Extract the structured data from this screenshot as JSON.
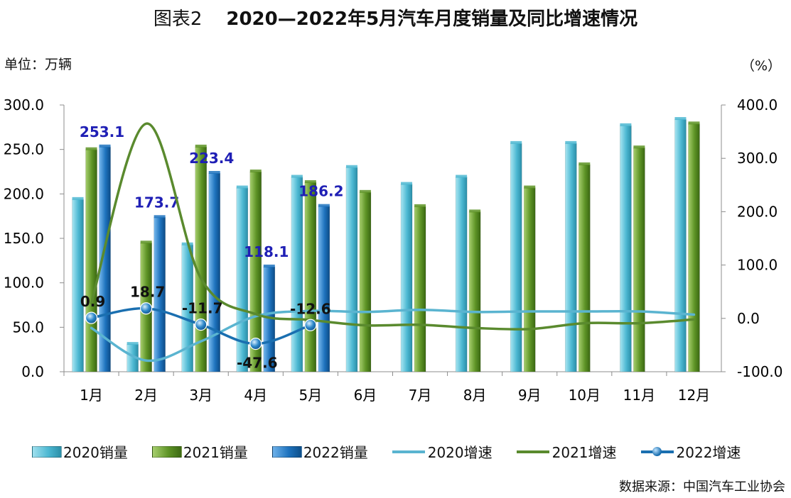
{
  "title": {
    "prefix": "图表2",
    "main": "2020—2022年5月汽车月度销量及同比增速情况"
  },
  "unit_left": "单位：万辆",
  "unit_right": "（%）",
  "source": "数据来源：中国汽车工业协会",
  "legend": [
    {
      "label": "2020销量",
      "kind": "bar",
      "color": "#4DB8D2"
    },
    {
      "label": "2021销量",
      "kind": "bar",
      "color": "#5E9426"
    },
    {
      "label": "2022销量",
      "kind": "bar",
      "color": "#1E73BE"
    },
    {
      "label": "2020增速",
      "kind": "line",
      "color": "#5AB4D0"
    },
    {
      "label": "2021增速",
      "kind": "line",
      "color": "#5A8A2E"
    },
    {
      "label": "2022增速",
      "kind": "line-marker",
      "color": "#1A6FB0"
    }
  ],
  "chart_data": {
    "type": "bar",
    "categories": [
      "1月",
      "2月",
      "3月",
      "4月",
      "5月",
      "6月",
      "7月",
      "8月",
      "9月",
      "10月",
      "11月",
      "12月"
    ],
    "y_left": {
      "min": 0,
      "max": 300,
      "ticks": [
        "0.0",
        "50.0",
        "100.0",
        "150.0",
        "200.0",
        "250.0",
        "300.0"
      ]
    },
    "y_right": {
      "min": -100,
      "max": 400,
      "ticks": [
        "-100.0",
        "0.0",
        "100.0",
        "200.0",
        "300.0",
        "400.0"
      ]
    },
    "bar_series": [
      {
        "name": "2020销量",
        "color": "#4DB8D2",
        "values": [
          194,
          31,
          143,
          207,
          219,
          230,
          211,
          219,
          257,
          257,
          277,
          284
        ]
      },
      {
        "name": "2021销量",
        "color": "#5E9426",
        "values": [
          250,
          145,
          253,
          225,
          213,
          202,
          186,
          180,
          207,
          233,
          252,
          279
        ]
      },
      {
        "name": "2022销量",
        "color": "#1E73BE",
        "values": [
          253.1,
          173.7,
          223.4,
          118.1,
          186.2,
          null,
          null,
          null,
          null,
          null,
          null,
          null
        ],
        "labels": [
          "253.1",
          "173.7",
          "223.4",
          "118.1",
          "186.2"
        ]
      }
    ],
    "line_series": [
      {
        "name": "2020增速",
        "color": "#5AB4D0",
        "axis": "right",
        "values": [
          -18,
          -79,
          -43,
          4,
          14,
          12,
          16,
          12,
          13,
          13,
          13,
          7
        ]
      },
      {
        "name": "2021增速",
        "color": "#5A8A2E",
        "axis": "right",
        "values": [
          29,
          365,
          75,
          8,
          -3,
          -13,
          -12,
          -18,
          -20,
          -9,
          -9,
          -2
        ]
      },
      {
        "name": "2022增速",
        "color": "#1A6FB0",
        "axis": "right",
        "values": [
          0.9,
          18.7,
          -11.7,
          -47.6,
          -12.6,
          null,
          null,
          null,
          null,
          null,
          null,
          null
        ],
        "labels": [
          "0.9",
          "18.7",
          "-11.7",
          "-47.6",
          "-12.6"
        ]
      }
    ]
  }
}
